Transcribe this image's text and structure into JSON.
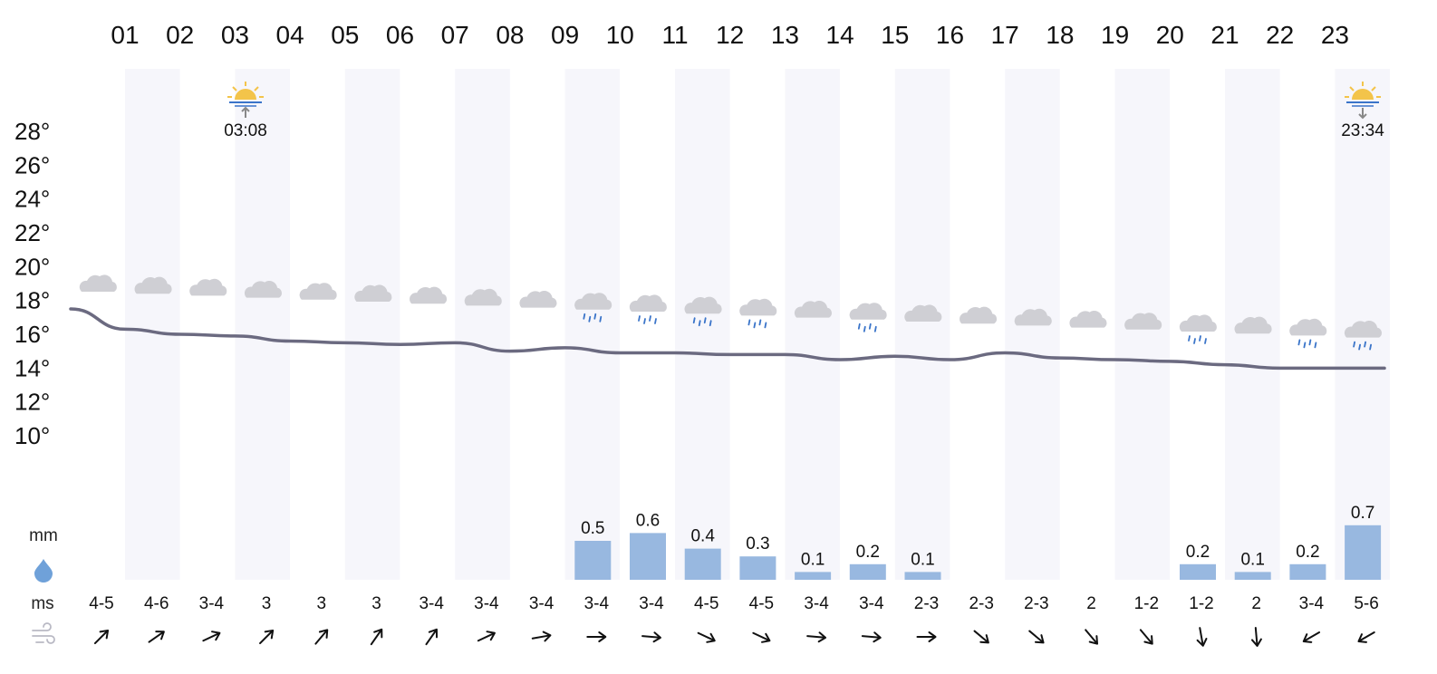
{
  "units": {
    "precip": "mm",
    "wind": "ms"
  },
  "sun": {
    "sunrise": "03:08",
    "sunset": "23:34"
  },
  "temperature_axis": {
    "ticks": [
      "28°",
      "26°",
      "24°",
      "22°",
      "20°",
      "18°",
      "16°",
      "14°",
      "12°",
      "10°"
    ]
  },
  "colors": {
    "stripe": "#f6f6fb",
    "line": "#6b6a80",
    "bar": "#98b8e0",
    "cloud": "#cfcfd4",
    "rain": "#3a74c9",
    "sun": "#f3c44a"
  },
  "chart_data": {
    "type": "line",
    "categories": [
      "01",
      "02",
      "03",
      "04",
      "05",
      "06",
      "07",
      "08",
      "09",
      "10",
      "11",
      "12",
      "13",
      "14",
      "15",
      "16",
      "17",
      "18",
      "19",
      "20",
      "21",
      "22",
      "23"
    ],
    "temperature": [
      16.3,
      16.0,
      15.9,
      15.6,
      15.5,
      15.4,
      15.5,
      15.0,
      15.2,
      14.9,
      14.9,
      14.8,
      14.8,
      14.5,
      14.7,
      14.5,
      14.9,
      14.6,
      14.5,
      14.4,
      14.2,
      14.0,
      14.0
    ],
    "temperature_ylim": [
      10,
      28
    ],
    "precipitation": [
      0,
      0,
      0,
      0,
      0,
      0,
      0,
      0,
      0,
      0.5,
      0.6,
      0.4,
      0.3,
      0.1,
      0.2,
      0.1,
      0,
      0,
      0,
      0,
      0.2,
      0.1,
      0.2,
      0.7
    ],
    "precipitation_labels": [
      "",
      "",
      "",
      "",
      "",
      "",
      "",
      "",
      "",
      "0.5",
      "0.6",
      "0.4",
      "0.3",
      "0.1",
      "0.2",
      "0.1",
      "",
      "",
      "",
      "",
      "0.2",
      "0.1",
      "0.2",
      "0.7"
    ],
    "wind_speed": [
      "4-5",
      "4-6",
      "3-4",
      "3",
      "3",
      "3",
      "3-4",
      "3-4",
      "3-4",
      "3-4",
      "3-4",
      "4-5",
      "4-5",
      "3-4",
      "3-4",
      "2-3",
      "2-3",
      "2-3",
      "2",
      "1-2",
      "1-2",
      "2",
      "3-4",
      "5-6"
    ],
    "wind_direction_deg": [
      225,
      235,
      245,
      225,
      220,
      215,
      215,
      245,
      260,
      270,
      275,
      295,
      295,
      275,
      275,
      270,
      310,
      310,
      320,
      320,
      350,
      355,
      60,
      60
    ],
    "weather_icons": [
      "cloud",
      "cloud",
      "cloud",
      "cloud",
      "cloud",
      "cloud",
      "cloud",
      "cloud",
      "cloud",
      "cloud-rain",
      "cloud-rain",
      "cloud-rain",
      "cloud-rain",
      "cloud",
      "cloud-rain",
      "cloud",
      "cloud",
      "cloud",
      "cloud",
      "cloud",
      "cloud-rain",
      "cloud",
      "cloud-rain",
      "cloud-rain"
    ]
  }
}
